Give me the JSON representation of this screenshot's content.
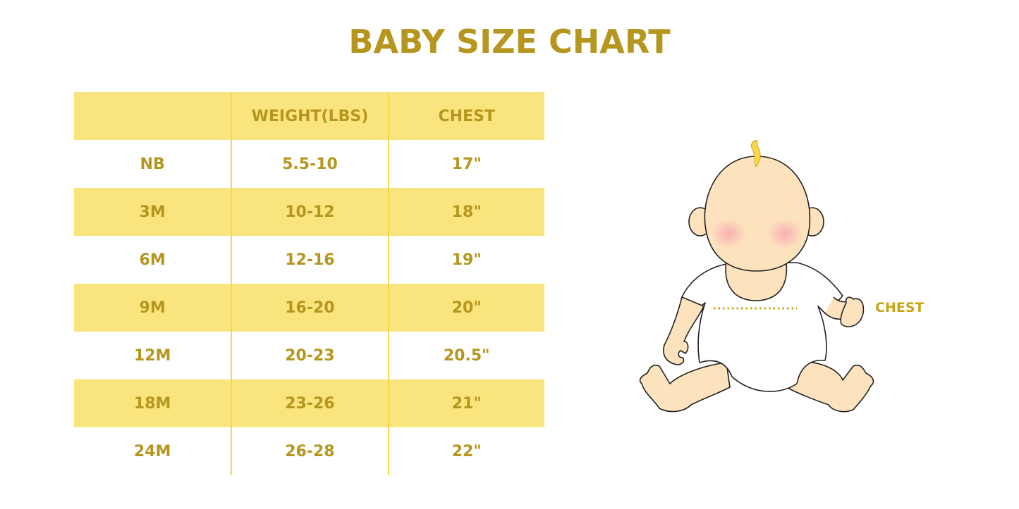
{
  "title": "BABY SIZE CHART",
  "table": {
    "headers": [
      "",
      "WEIGHT(LBS)",
      "CHEST"
    ],
    "rows": [
      [
        "NB",
        "5.5-10",
        "17\""
      ],
      [
        "3M",
        "10-12",
        "18\""
      ],
      [
        "6M",
        "12-16",
        "19\""
      ],
      [
        "9M",
        "16-20",
        "20\""
      ],
      [
        "12M",
        "20-23",
        "20.5\""
      ],
      [
        "18M",
        "23-26",
        "21\""
      ],
      [
        "24M",
        "26-28",
        "22\""
      ]
    ]
  },
  "illustration": {
    "label": "CHEST"
  },
  "colors": {
    "accent": "#b5961e",
    "band": "#fae47e",
    "skin": "#fde3bd"
  }
}
